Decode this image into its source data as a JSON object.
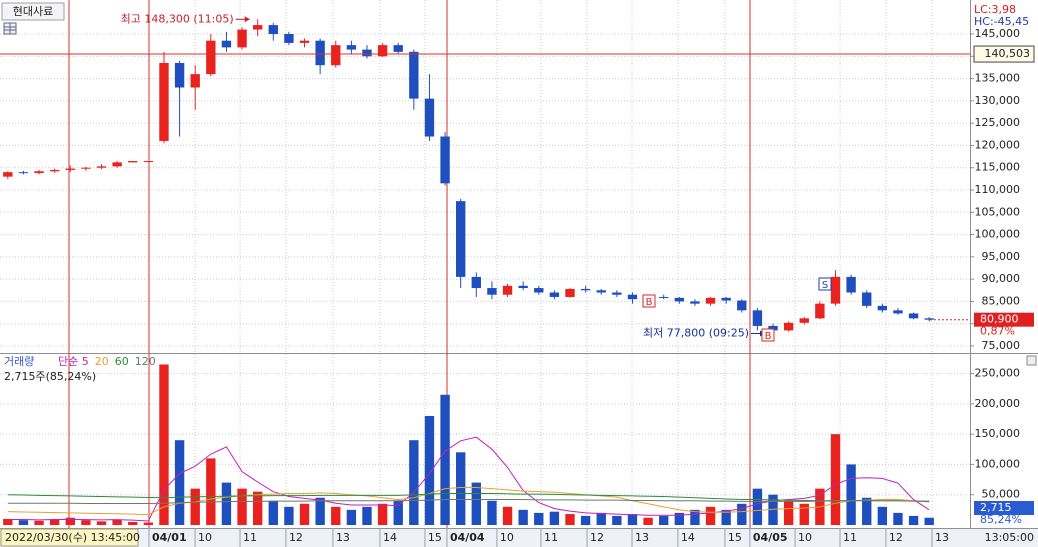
{
  "chart_data": [
    {
      "type": "candlestick",
      "symbol": "현대사료",
      "indicator_lc": "LC:3,98",
      "indicator_hc": "HC:-45,45",
      "up_color": "#e8221e",
      "down_color": "#1f4fbf",
      "categories": [
        null,
        null,
        null,
        null,
        null,
        null,
        null,
        null,
        null,
        null,
        null,
        null,
        null,
        null,
        null,
        null,
        null,
        null,
        null,
        null,
        null,
        null,
        null,
        null,
        null,
        null,
        null,
        null,
        null,
        null,
        null,
        null,
        null,
        null,
        null,
        null,
        null,
        null,
        null,
        null,
        null,
        null,
        null,
        null,
        null,
        null,
        null,
        null,
        null,
        null,
        null,
        null,
        null,
        null,
        null,
        null,
        null,
        null,
        null,
        null
      ],
      "open": [
        113000,
        114000,
        113800,
        114200,
        114500,
        114800,
        115000,
        115300,
        116200,
        116500,
        121000,
        138500,
        133000,
        136000,
        143500,
        142000,
        146000,
        147000,
        145000,
        143000,
        143500,
        138000,
        142500,
        141500,
        140000,
        142500,
        141000,
        130500,
        122000,
        107500,
        90500,
        88000,
        86500,
        88500,
        88000,
        87000,
        86000,
        87800,
        87500,
        87000,
        86500,
        85500,
        86000,
        85800,
        85000,
        84500,
        85800,
        85200,
        83000,
        79500,
        78500,
        80200,
        81200,
        84500,
        90500,
        87000,
        84000,
        83000,
        82300,
        81200
      ],
      "high": [
        114200,
        114300,
        114500,
        114800,
        115500,
        115200,
        115800,
        116500,
        116500,
        116500,
        141000,
        139000,
        138000,
        145000,
        145500,
        146500,
        148300,
        147500,
        145500,
        144000,
        144000,
        143500,
        143500,
        142500,
        143000,
        143000,
        141500,
        136000,
        123000,
        108000,
        91500,
        89500,
        89000,
        89500,
        88500,
        87500,
        88000,
        88500,
        87800,
        87500,
        87000,
        86500,
        86500,
        86000,
        85500,
        86000,
        86000,
        85500,
        83500,
        80000,
        80500,
        81500,
        85000,
        92000,
        91000,
        87500,
        84500,
        83500,
        82500,
        81500
      ],
      "low": [
        112500,
        113500,
        113500,
        113800,
        114000,
        114300,
        114700,
        115000,
        116200,
        116500,
        120500,
        122000,
        128000,
        135500,
        141000,
        141500,
        144500,
        143500,
        142500,
        142000,
        136000,
        137500,
        140500,
        139500,
        139800,
        140500,
        128000,
        121000,
        111000,
        88000,
        86000,
        85500,
        86000,
        87500,
        86500,
        85500,
        85800,
        87000,
        86500,
        86000,
        84500,
        85000,
        85500,
        84500,
        84000,
        84000,
        84500,
        82500,
        78500,
        77800,
        78200,
        79800,
        81000,
        84000,
        86500,
        83500,
        82500,
        82000,
        81000,
        80500
      ],
      "close": [
        114000,
        113800,
        114200,
        114500,
        114800,
        115000,
        115300,
        116200,
        116500,
        116500,
        138500,
        133000,
        136000,
        143500,
        142000,
        146000,
        147000,
        145000,
        143000,
        143500,
        138000,
        142500,
        141500,
        140000,
        142500,
        141000,
        130500,
        122000,
        111500,
        90500,
        88000,
        86500,
        88500,
        88000,
        87000,
        86000,
        87800,
        87500,
        87000,
        86500,
        85500,
        86000,
        85800,
        85000,
        84500,
        85800,
        85200,
        83000,
        79500,
        78500,
        80200,
        81200,
        84500,
        90500,
        87000,
        84000,
        83000,
        82300,
        81200,
        80900
      ],
      "ylim": [
        73650,
        152630
      ],
      "yticks": [
        {
          "value": 75000,
          "label": "75,000"
        },
        {
          "value": 80000,
          "label": "80,000"
        },
        {
          "value": 85000,
          "label": "85,000"
        },
        {
          "value": 90000,
          "label": "90,000"
        },
        {
          "value": 95000,
          "label": "95,000"
        },
        {
          "value": 100000,
          "label": "100,000"
        },
        {
          "value": 105000,
          "label": "105,000"
        },
        {
          "value": 110000,
          "label": "110,000"
        },
        {
          "value": 115000,
          "label": "115,000"
        },
        {
          "value": 120000,
          "label": "120,000"
        },
        {
          "value": 125000,
          "label": "125,000"
        },
        {
          "value": 130000,
          "label": "130,000"
        },
        {
          "value": 135000,
          "label": "135,000"
        },
        {
          "value": 140000,
          "label": "140,000"
        },
        {
          "value": 145000,
          "label": "145,000"
        }
      ],
      "crosshair": {
        "value": 140503,
        "label": "140,503"
      },
      "last": {
        "value": 80900,
        "label": "80,900"
      },
      "change_label": "0,87%",
      "annotations": [
        {
          "text": "최고 148,300 (11:05)",
          "value": 148300,
          "color": "#c8202a"
        },
        {
          "text": "최저 77,800 (09:25)",
          "value": 77800,
          "color": "#1a2f9a"
        }
      ],
      "signals": [
        {
          "label": "B",
          "color": "#d9262b"
        },
        {
          "label": "B",
          "color": "#d9262b"
        },
        {
          "label": "S",
          "color": "#1f3fa8"
        }
      ]
    },
    {
      "type": "bar",
      "title": "거래량",
      "values": [
        10000,
        8000,
        7000,
        9000,
        12000,
        8000,
        6000,
        9000,
        5000,
        4000,
        265000,
        140000,
        60000,
        110000,
        70000,
        60000,
        55000,
        40000,
        30000,
        35000,
        45000,
        30000,
        25000,
        30000,
        35000,
        40000,
        140000,
        180000,
        215000,
        120000,
        70000,
        40000,
        30000,
        25000,
        20000,
        22000,
        18000,
        15000,
        20000,
        15000,
        18000,
        12000,
        15000,
        20000,
        25000,
        30000,
        25000,
        35000,
        60000,
        50000,
        40000,
        35000,
        60000,
        150000,
        100000,
        45000,
        30000,
        20000,
        15000,
        12000
      ],
      "series": [
        {
          "name": "단순 5",
          "color": "#c020c0",
          "values": [
            9000,
            9000,
            8500,
            9000,
            9200,
            8800,
            8400,
            8800,
            8000,
            6600,
            58000,
            85000,
            97000,
            117000,
            129000,
            88000,
            71000,
            55000,
            47000,
            44000,
            41000,
            36000,
            33000,
            33000,
            33000,
            32000,
            54000,
            85000,
            122000,
            139000,
            145000,
            125000,
            95000,
            57000,
            37000,
            27000,
            23000,
            20000,
            19000,
            18000,
            17000,
            16000,
            16000,
            16000,
            18000,
            20000,
            23000,
            27000,
            35000,
            40000,
            42000,
            44000,
            49000,
            67000,
            77000,
            78000,
            77000,
            69000,
            42000,
            25000
          ]
        },
        {
          "name": "20",
          "color": "#e8a030",
          "values": [
            22000,
            21500,
            21000,
            20500,
            20000,
            19500,
            19000,
            18500,
            18000,
            17000,
            30000,
            36000,
            38000,
            43000,
            46000,
            48000,
            50000,
            51000,
            52000,
            52000,
            53000,
            52000,
            50000,
            48000,
            45000,
            42000,
            45000,
            52000,
            60000,
            62000,
            62000,
            60000,
            58000,
            56000,
            55000,
            54000,
            52000,
            50000,
            48000,
            46000,
            40000,
            35000,
            30000,
            25000,
            22000,
            21000,
            21000,
            22000,
            24000,
            26000,
            27000,
            28000,
            30000,
            36000,
            40000,
            41000,
            42000,
            42000,
            40000,
            38000
          ]
        },
        {
          "name": "60",
          "color": "#2e8b3e",
          "values": [
            50000,
            49500,
            49000,
            48500,
            48000,
            47500,
            47000,
            46500,
            46000,
            45500,
            45000,
            46000,
            46500,
            47000,
            47500,
            48000,
            48000,
            48500,
            48500,
            48500,
            49000,
            49000,
            49000,
            49000,
            49000,
            49000,
            50000,
            51000,
            52000,
            52000,
            52000,
            52000,
            51500,
            51000,
            51000,
            50500,
            50000,
            49500,
            49000,
            48500,
            48000,
            47500,
            47000,
            46000,
            45000,
            44000,
            43000,
            42000,
            42000,
            41500,
            41000,
            40500,
            40000,
            40000,
            40500,
            40500,
            40000,
            40000,
            39500,
            39000
          ]
        },
        {
          "name": "120",
          "color": "#6b7a6b",
          "values": [
            36000,
            36000,
            36000,
            36000,
            36000,
            35500,
            35500,
            35500,
            35500,
            35500,
            36000,
            37000,
            37500,
            38000,
            38500,
            39000,
            39000,
            39500,
            39500,
            39500,
            40000,
            40000,
            40000,
            40000,
            40000,
            40000,
            40500,
            41000,
            42000,
            42000,
            42000,
            42000,
            42000,
            42000,
            41500,
            41500,
            41500,
            41000,
            41000,
            41000,
            40500,
            40500,
            40000,
            40000,
            40000,
            39500,
            39500,
            39000,
            39000,
            39000,
            39000,
            39000,
            39500,
            40000,
            40000,
            40000,
            40000,
            40000,
            39500,
            39500
          ]
        }
      ],
      "ylim": [
        0,
        279000
      ],
      "yticks": [
        {
          "value": 50000,
          "label": "50,000"
        },
        {
          "value": 100000,
          "label": "100,000"
        },
        {
          "value": 150000,
          "label": "150,000"
        },
        {
          "value": 200000,
          "label": "200,000"
        },
        {
          "value": 250000,
          "label": "250,000"
        }
      ],
      "summary": "2,715주(85,24%)",
      "current_label": "2,715",
      "current_pct": "85,24%",
      "date_label": "2022/03/30(수) 13:45:00",
      "time_label": "13:05:00",
      "xticks": [
        {
          "value": 9.04,
          "label": "04/01"
        },
        {
          "value": 11.99,
          "label": "10"
        },
        {
          "value": 14.87,
          "label": "11"
        },
        {
          "value": 17.81,
          "label": "12"
        },
        {
          "value": 20.82,
          "label": "13"
        },
        {
          "value": 23.83,
          "label": "14"
        },
        {
          "value": 26.71,
          "label": "15"
        },
        {
          "value": 28.12,
          "label": "04/04"
        },
        {
          "value": 31.32,
          "label": "10"
        },
        {
          "value": 34.14,
          "label": "11"
        },
        {
          "value": 37.09,
          "label": "12"
        },
        {
          "value": 39.97,
          "label": "13"
        },
        {
          "value": 42.91,
          "label": "14"
        },
        {
          "value": 45.92,
          "label": "15"
        },
        {
          "value": 47.52,
          "label": "04/05"
        },
        {
          "value": 50.41,
          "label": "10"
        },
        {
          "value": 53.29,
          "label": "11"
        },
        {
          "value": 56.23,
          "label": "12"
        },
        {
          "value": 59.18,
          "label": "13"
        }
      ]
    }
  ]
}
